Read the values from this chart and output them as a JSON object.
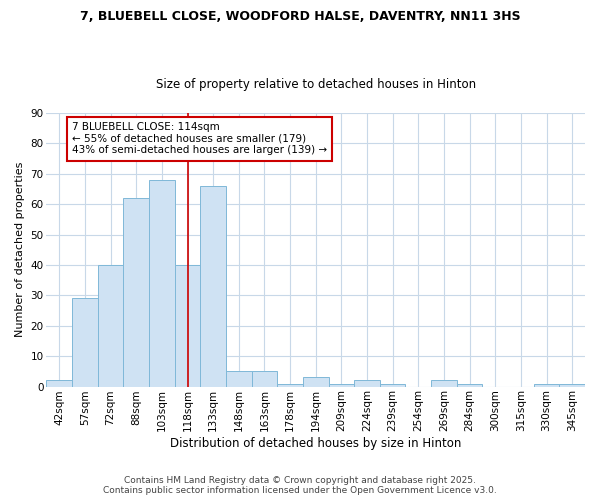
{
  "title1": "7, BLUEBELL CLOSE, WOODFORD HALSE, DAVENTRY, NN11 3HS",
  "title2": "Size of property relative to detached houses in Hinton",
  "xlabel": "Distribution of detached houses by size in Hinton",
  "ylabel": "Number of detached properties",
  "bins": [
    "42sqm",
    "57sqm",
    "72sqm",
    "88sqm",
    "103sqm",
    "118sqm",
    "133sqm",
    "148sqm",
    "163sqm",
    "178sqm",
    "194sqm",
    "209sqm",
    "224sqm",
    "239sqm",
    "254sqm",
    "269sqm",
    "284sqm",
    "300sqm",
    "315sqm",
    "330sqm",
    "345sqm"
  ],
  "values": [
    2,
    29,
    40,
    62,
    68,
    40,
    66,
    5,
    5,
    1,
    3,
    1,
    2,
    1,
    0,
    2,
    1,
    0,
    0,
    1,
    1
  ],
  "bar_color": "#cfe2f3",
  "bar_edge_color": "#7fb8d8",
  "vline_color": "#cc0000",
  "vline_x": 5.0,
  "annotation_text": "7 BLUEBELL CLOSE: 114sqm\n← 55% of detached houses are smaller (179)\n43% of semi-detached houses are larger (139) →",
  "annotation_box_color": "#ffffff",
  "annotation_box_edge": "#cc0000",
  "ylim": [
    0,
    90
  ],
  "yticks": [
    0,
    10,
    20,
    30,
    40,
    50,
    60,
    70,
    80,
    90
  ],
  "footnote": "Contains HM Land Registry data © Crown copyright and database right 2025.\nContains public sector information licensed under the Open Government Licence v3.0.",
  "bg_color": "#ffffff",
  "grid_color": "#c8d8e8",
  "title1_fontsize": 9,
  "title2_fontsize": 8.5,
  "xlabel_fontsize": 8.5,
  "ylabel_fontsize": 8,
  "tick_fontsize": 7.5,
  "annot_fontsize": 7.5,
  "footnote_fontsize": 6.5
}
